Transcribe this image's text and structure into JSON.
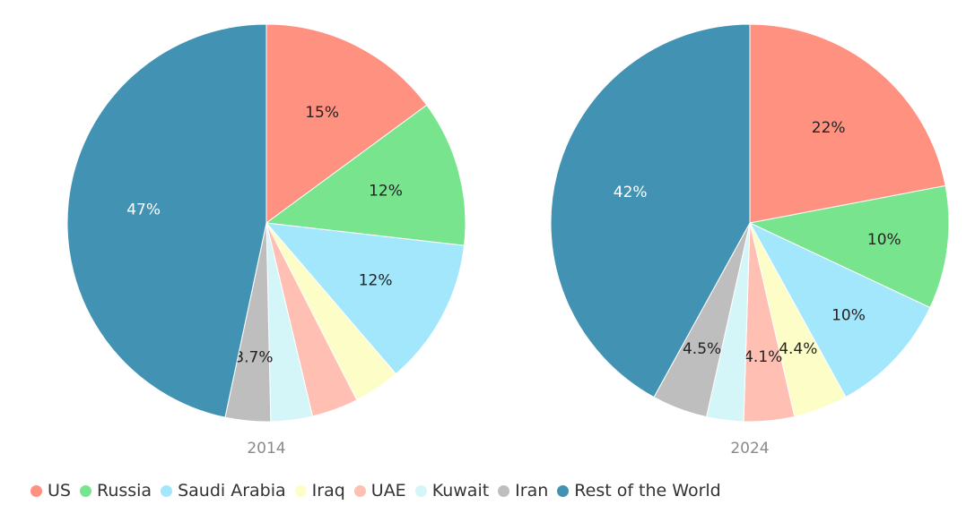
{
  "chart_data": {
    "type": "pie",
    "legend": [
      {
        "name": "US",
        "color": "#ff9181"
      },
      {
        "name": "Russia",
        "color": "#78e58e"
      },
      {
        "name": "Saudi Arabia",
        "color": "#a3e7fc"
      },
      {
        "name": "Iraq",
        "color": "#fdfec7"
      },
      {
        "name": "UAE",
        "color": "#ffbfb3"
      },
      {
        "name": "Kuwait",
        "color": "#d4f6f8"
      },
      {
        "name": "Iran",
        "color": "#bebebe"
      },
      {
        "name": "Rest of the World",
        "color": "#4292b3"
      }
    ],
    "legend_position": "bottom",
    "pies": [
      {
        "label": "2014",
        "values": [
          15,
          12,
          12,
          3.8,
          3.8,
          3.4,
          3.7,
          47
        ],
        "data_labels": [
          "15%",
          "12%",
          "12%",
          "",
          "",
          "",
          "3.7%",
          "47%"
        ]
      },
      {
        "label": "2024",
        "values": [
          22,
          10,
          10,
          4.4,
          4.1,
          3.0,
          4.5,
          42
        ],
        "data_labels": [
          "22%",
          "10%",
          "10%",
          "4.4%",
          "4.1%",
          "",
          "4.5%",
          "42%"
        ]
      }
    ]
  }
}
